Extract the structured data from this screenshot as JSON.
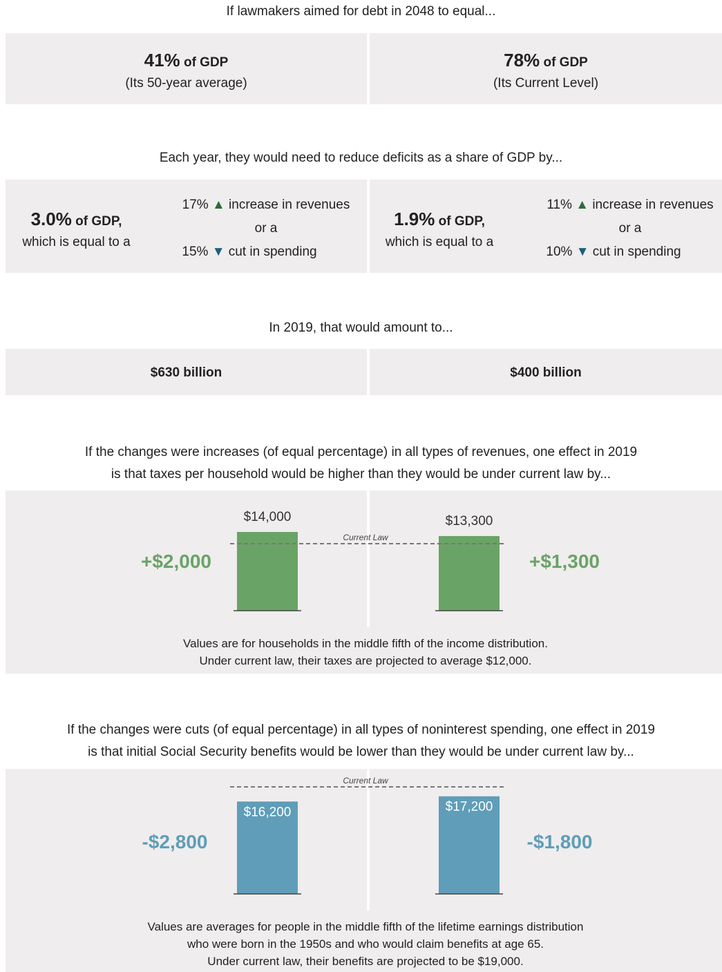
{
  "section1": {
    "heading": "If lawmakers aimed for debt in 2048 to equal...",
    "left": {
      "value": "41%",
      "unit": "of GDP",
      "note": "(Its 50-year average)"
    },
    "right": {
      "value": "78%",
      "unit": "of GDP",
      "note": "(Its Current Level)"
    }
  },
  "section2": {
    "heading": "Each year, they would need to reduce deficits as a share of GDP by...",
    "left": {
      "value": "3.0%",
      "unit": "of GDP,",
      "note": "which is equal to a",
      "revenue_pct": "17%",
      "revenue_text": "increase in revenues",
      "or": "or a",
      "spending_pct": "15%",
      "spending_text": "cut in spending"
    },
    "right": {
      "value": "1.9%",
      "unit": "of GDP,",
      "note": "which is equal to a",
      "revenue_pct": "11%",
      "revenue_text": "increase in revenues",
      "or": "or a",
      "spending_pct": "10%",
      "spending_text": "cut in spending"
    }
  },
  "section3": {
    "heading": "In 2019, that would amount to...",
    "left": "$630 billion",
    "right": "$400 billion"
  },
  "section4": {
    "heading_lines": [
      "If the changes were increases (of equal percentage) in all types of revenues, one effect in 2019",
      "is that taxes per household would be higher than they would be under current law by..."
    ],
    "reference_label": "Current Law",
    "reference": 12000,
    "values": [
      14000,
      13300
    ],
    "value_labels": [
      "$14,000",
      "$13,300"
    ],
    "differences": [
      "+$2,000",
      "+$1,300"
    ],
    "color": "#6aa366",
    "note_lines": [
      "Values are for households in the middle fifth of the income distribution.",
      "Under current law, their taxes are projected to average $12,000."
    ]
  },
  "section5": {
    "heading_lines": [
      "If the changes were cuts (of equal percentage) in all types of noninterest spending, one effect in 2019",
      "is that initial Social Security benefits would be lower than they would be under current law by..."
    ],
    "reference_label": "Current Law",
    "reference": 19000,
    "values": [
      16200,
      17200
    ],
    "value_labels": [
      "$16,200",
      "$17,200"
    ],
    "differences": [
      "-$2,800",
      "-$1,800"
    ],
    "color": "#5f9db8",
    "note_lines": [
      "Values are averages for people in the middle fifth of the lifetime earnings distribution",
      "who were born in the 1950s and who would claim benefits at age 65.",
      "Under current law, their benefits are projected to be $19,000."
    ]
  }
}
